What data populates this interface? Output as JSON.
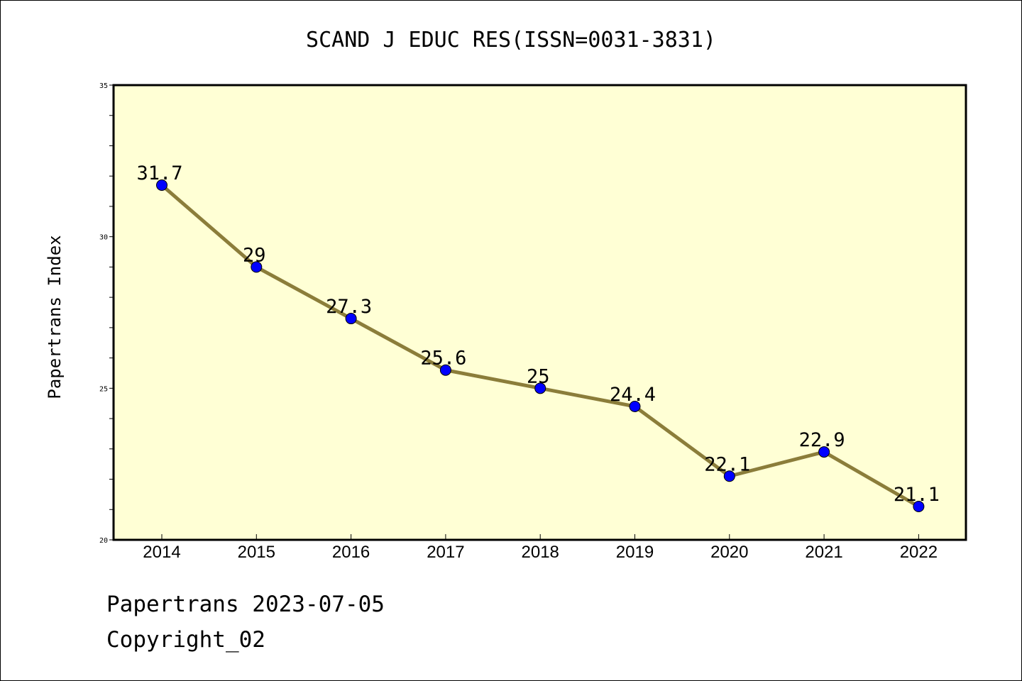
{
  "chart_data": {
    "type": "line",
    "title": "SCAND J EDUC RES(ISSN=0031-3831)",
    "xlabel": "",
    "ylabel": "Papertrans Index",
    "categories": [
      "2014",
      "2015",
      "2016",
      "2017",
      "2018",
      "2019",
      "2020",
      "2021",
      "2022"
    ],
    "series": [
      {
        "values": [
          31.7,
          29,
          27.3,
          25.6,
          25,
          24.4,
          22.1,
          22.9,
          21.1
        ],
        "labels": [
          "31.7",
          "29",
          "27.3",
          "25.6",
          "25",
          "24.4",
          "22.1",
          "22.9",
          "21.1"
        ]
      }
    ],
    "ylim": [
      20,
      35
    ],
    "yticks": [
      "20",
      "25",
      "30",
      "35"
    ],
    "grid": false,
    "line_color": "#8b7d3a",
    "marker_color": "#0000ff",
    "plot_background": "#ffffd5"
  },
  "footer": {
    "line1": "Papertrans 2023-07-05",
    "line2": "Copyright_02"
  }
}
